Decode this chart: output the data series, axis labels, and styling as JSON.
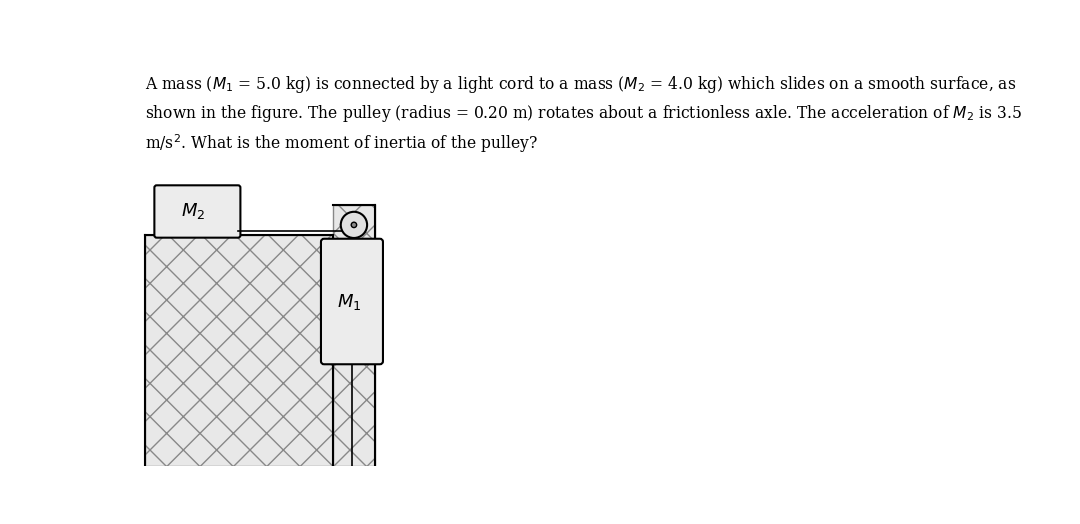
{
  "bg_color": "#ffffff",
  "text_color": "#000000",
  "fig_width": 10.8,
  "fig_height": 5.24,
  "title_line1": "A mass ($M_1$ = 5.0 kg) is connected by a light cord to a mass ($M_2$ = 4.0 kg) which slides on a smooth surface, as",
  "title_line2": "shown in the figure. The pulley (radius = 0.20 m) rotates about a frictionless axle. The acceleration of $M_2$ is 3.5",
  "title_line3": "m/s$^2$. What is the moment of inertia of the pulley?",
  "M2_label": "$M_2$",
  "M1_label": "$M_1$",
  "wall_hatch_color": "#c8c8c8",
  "block_face_color": "#ececec",
  "pulley_face_color": "#e0e0e0"
}
